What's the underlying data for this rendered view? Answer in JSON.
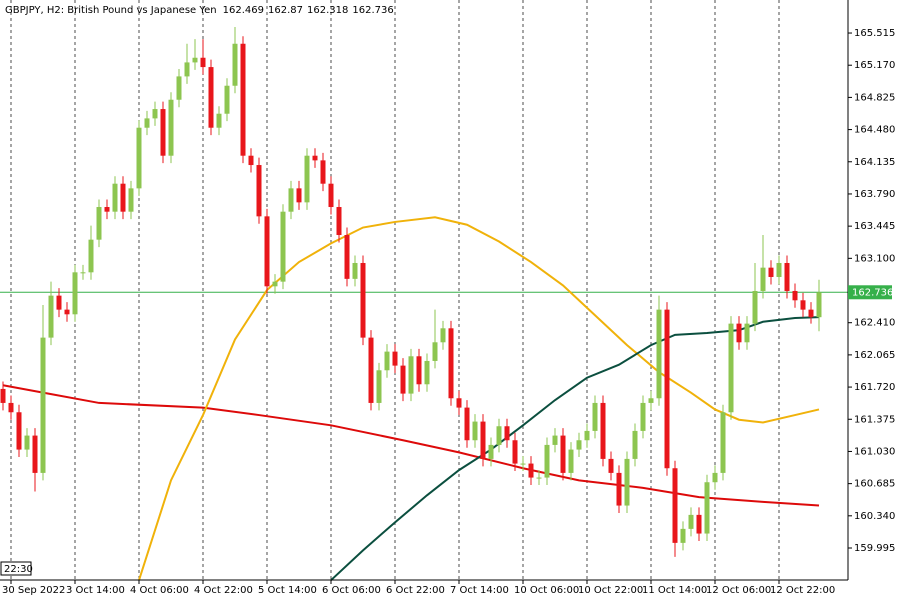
{
  "chart_data": {
    "type": "candlestick",
    "title": "GBPJPY, H2:  British Pound vs Japanese Yen",
    "timer": "22:30",
    "up_color": "#8dc550",
    "down_color": "#e8161b",
    "price_line_color": "#36b04a",
    "ylim": [
      159.652,
      165.869
    ],
    "yticks": [
      165.515,
      {
        "value": 165.17,
        "label": "165.170"
      },
      164.825,
      {
        "value": 164.48,
        "label": "164.480"
      },
      164.135,
      {
        "value": 163.79,
        "label": "163.790"
      },
      163.445,
      {
        "value": 163.1,
        "label": "163.100"
      },
      {
        "value": 162.41,
        "label": "162.410"
      },
      162.065,
      {
        "value": 161.72,
        "label": "161.720"
      },
      161.375,
      {
        "value": 161.03,
        "label": "161.030"
      },
      160.685,
      {
        "value": 160.34,
        "label": "160.340"
      },
      159.995
    ],
    "categories": [
      null,
      "30 Sep 2022",
      null,
      null,
      null,
      null,
      null,
      null,
      null,
      "3 Oct 14:00",
      null,
      null,
      null,
      null,
      null,
      null,
      null,
      "4 Oct 06:00",
      null,
      null,
      null,
      null,
      null,
      null,
      null,
      "4 Oct 22:00",
      null,
      null,
      null,
      null,
      null,
      null,
      null,
      "5 Oct 14:00",
      null,
      null,
      null,
      null,
      null,
      null,
      null,
      "6 Oct 06:00",
      null,
      null,
      null,
      null,
      null,
      null,
      null,
      "6 Oct 22:00",
      null,
      null,
      null,
      null,
      null,
      null,
      null,
      "7 Oct 14:00",
      null,
      null,
      null,
      null,
      null,
      null,
      null,
      "10 Oct 06:00",
      null,
      null,
      null,
      null,
      null,
      null,
      null,
      "10 Oct 22:00",
      null,
      null,
      null,
      null,
      null,
      null,
      null,
      "11 Oct 14:00",
      null,
      null,
      null,
      null,
      null,
      null,
      null,
      "12 Oct 06:00",
      null,
      null,
      null,
      null,
      null,
      null,
      null,
      "12 Oct 22:00",
      null,
      null,
      null,
      null,
      null
    ],
    "open": [
      161.7,
      161.55,
      161.45,
      161.05,
      161.2,
      160.8,
      162.25,
      162.7,
      162.55,
      162.5,
      162.95,
      162.95,
      163.3,
      163.65,
      163.6,
      163.9,
      163.6,
      163.85,
      164.5,
      164.6,
      164.7,
      164.2,
      164.8,
      165.05,
      165.2,
      165.25,
      165.15,
      164.5,
      164.65,
      164.95,
      165.4,
      164.2,
      164.1,
      163.55,
      162.8,
      162.85,
      163.6,
      163.85,
      163.7,
      164.2,
      164.15,
      163.9,
      163.65,
      163.35,
      162.88,
      163.05,
      162.25,
      161.55,
      161.9,
      162.1,
      161.95,
      161.65,
      162.05,
      161.75,
      162.0,
      162.2,
      162.35,
      161.6,
      161.5,
      161.15,
      161.35,
      160.95,
      161.1,
      161.3,
      161.15,
      160.9,
      160.9,
      160.75,
      160.75,
      161.1,
      161.2,
      160.8,
      161.05,
      161.15,
      161.25,
      161.55,
      160.95,
      160.8,
      160.45,
      160.95,
      161.25,
      161.55,
      161.6,
      162.55,
      160.85,
      160.05,
      160.2,
      160.35,
      160.15,
      160.7,
      160.8,
      161.45,
      162.4,
      162.2,
      162.4,
      162.75,
      163.0,
      162.9,
      163.05,
      162.75,
      162.65,
      162.55,
      162.469
    ],
    "high": [
      161.78,
      161.63,
      161.53,
      161.28,
      161.28,
      162.6,
      162.85,
      162.78,
      162.63,
      163.03,
      163.03,
      163.45,
      163.73,
      163.73,
      163.98,
      163.98,
      163.93,
      164.58,
      164.68,
      164.78,
      164.78,
      164.88,
      165.13,
      165.4,
      165.45,
      165.45,
      165.23,
      164.73,
      165.03,
      165.58,
      165.48,
      164.28,
      164.18,
      163.63,
      162.93,
      163.68,
      163.93,
      163.93,
      164.28,
      164.28,
      164.23,
      163.98,
      163.73,
      163.43,
      163.13,
      163.13,
      162.33,
      161.98,
      162.18,
      162.18,
      162.03,
      162.13,
      162.13,
      162.08,
      162.55,
      162.43,
      162.43,
      161.68,
      161.58,
      161.43,
      161.43,
      161.18,
      161.38,
      161.38,
      161.23,
      160.98,
      160.98,
      160.83,
      161.18,
      161.28,
      161.28,
      161.13,
      161.23,
      161.33,
      161.63,
      161.63,
      161.03,
      160.88,
      161.03,
      161.33,
      161.63,
      161.68,
      162.7,
      162.63,
      160.93,
      160.28,
      160.43,
      160.43,
      160.78,
      160.88,
      161.53,
      162.48,
      162.48,
      162.48,
      163.05,
      163.35,
      163.08,
      163.13,
      163.13,
      162.83,
      162.73,
      162.63,
      162.87
    ],
    "low": [
      161.47,
      161.37,
      160.97,
      160.97,
      160.6,
      160.72,
      162.17,
      162.47,
      162.42,
      162.42,
      162.87,
      162.87,
      163.22,
      163.52,
      163.52,
      163.52,
      163.52,
      163.77,
      164.42,
      164.52,
      164.12,
      164.12,
      164.72,
      164.97,
      165.12,
      165.07,
      164.42,
      164.42,
      164.57,
      164.87,
      164.12,
      164.02,
      163.47,
      162.72,
      162.72,
      162.77,
      163.52,
      163.62,
      163.62,
      164.07,
      163.82,
      163.57,
      163.27,
      162.8,
      162.8,
      162.17,
      161.47,
      161.47,
      161.82,
      161.87,
      161.57,
      161.57,
      161.67,
      161.67,
      161.92,
      162.12,
      161.52,
      161.42,
      161.07,
      161.07,
      160.87,
      160.87,
      161.02,
      161.07,
      160.82,
      160.82,
      160.67,
      160.67,
      160.67,
      161.02,
      160.72,
      160.72,
      160.97,
      161.07,
      161.17,
      160.87,
      160.72,
      160.37,
      160.37,
      160.87,
      161.17,
      161.47,
      161.52,
      160.77,
      159.9,
      159.97,
      160.12,
      160.07,
      160.07,
      160.62,
      160.72,
      161.37,
      162.12,
      162.12,
      162.32,
      162.67,
      162.82,
      162.82,
      162.67,
      162.57,
      162.47,
      162.4,
      162.318
    ],
    "close": [
      161.55,
      161.45,
      161.05,
      161.2,
      160.8,
      162.25,
      162.7,
      162.55,
      162.5,
      162.95,
      162.95,
      163.3,
      163.65,
      163.6,
      163.9,
      163.6,
      163.85,
      164.5,
      164.6,
      164.7,
      164.2,
      164.8,
      165.05,
      165.2,
      165.25,
      165.15,
      164.5,
      164.65,
      164.95,
      165.4,
      164.2,
      164.1,
      163.55,
      162.8,
      162.85,
      163.6,
      163.85,
      163.7,
      164.2,
      164.15,
      163.9,
      163.65,
      163.35,
      162.88,
      163.05,
      162.25,
      161.55,
      161.9,
      162.1,
      161.95,
      161.65,
      162.05,
      161.75,
      162.0,
      162.2,
      162.35,
      161.6,
      161.5,
      161.15,
      161.35,
      160.95,
      161.1,
      161.3,
      161.15,
      160.9,
      160.9,
      160.75,
      160.75,
      161.1,
      161.2,
      160.8,
      161.05,
      161.15,
      161.25,
      161.55,
      160.95,
      160.8,
      160.45,
      160.95,
      161.25,
      161.55,
      161.6,
      162.55,
      160.85,
      160.05,
      160.2,
      160.35,
      160.15,
      160.7,
      160.8,
      161.45,
      162.4,
      162.2,
      162.4,
      162.75,
      163.0,
      162.9,
      163.05,
      162.75,
      162.65,
      162.55,
      162.469,
      162.736
    ],
    "series": [
      {
        "color": "#dd0a0a",
        "x": [
          0,
          5,
          12,
          25,
          32,
          41,
          50,
          57,
          65,
          72,
          80,
          87,
          95,
          102
        ],
        "values": [
          161.74,
          161.66,
          161.55,
          161.5,
          161.42,
          161.31,
          161.15,
          161.02,
          160.85,
          160.72,
          160.64,
          160.54,
          160.49,
          160.45
        ]
      },
      {
        "color": "#f0b20a",
        "x": [
          17,
          21,
          25,
          29,
          33,
          37,
          41,
          45,
          49,
          54,
          58,
          62,
          66,
          70,
          74,
          78,
          82,
          86,
          89,
          92,
          95,
          99,
          102
        ],
        "values": [
          159.65,
          160.72,
          161.42,
          162.23,
          162.76,
          163.06,
          163.26,
          163.43,
          163.49,
          163.54,
          163.46,
          163.28,
          163.06,
          162.81,
          162.49,
          162.17,
          161.88,
          161.66,
          161.48,
          161.37,
          161.34,
          161.42,
          161.48
        ]
      },
      {
        "color": "#0b4f3f",
        "x": [
          41,
          45,
          49,
          53,
          57,
          61,
          65,
          69,
          73,
          77,
          81,
          84,
          88,
          92,
          95,
          99,
          102
        ],
        "values": [
          159.65,
          159.97,
          160.27,
          160.56,
          160.83,
          161.05,
          161.31,
          161.58,
          161.82,
          161.96,
          162.17,
          162.28,
          162.3,
          162.33,
          162.42,
          162.46,
          162.47
        ]
      }
    ]
  }
}
